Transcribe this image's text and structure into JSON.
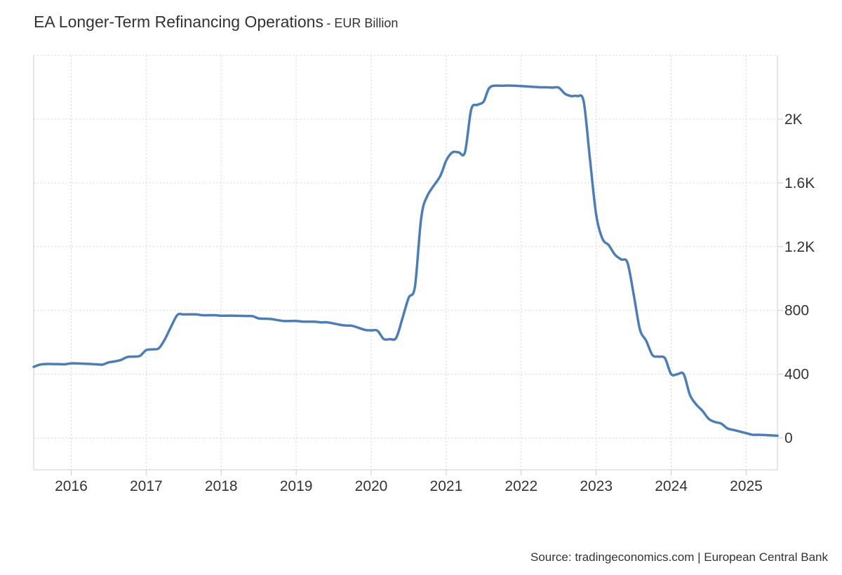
{
  "header": {
    "title": "EA Longer-Term Refinancing Operations",
    "subtitle": "- EUR Billion"
  },
  "footer": {
    "source": "Source: tradingeconomics.com | European Central Bank"
  },
  "colors": {
    "line": "#4a7ebb",
    "grid": "#d6d6d6",
    "axis": "#cccccc",
    "text": "#333333"
  },
  "chart_data": {
    "type": "line",
    "title": "EA Longer-Term Refinancing Operations",
    "subtitle": "EUR Billion",
    "x_ticks": [
      "2016",
      "2017",
      "2018",
      "2019",
      "2020",
      "2021",
      "2022",
      "2023",
      "2024",
      "2025"
    ],
    "y_ticks": [
      {
        "value": 0,
        "label": "0"
      },
      {
        "value": 400,
        "label": "400"
      },
      {
        "value": 800,
        "label": "800"
      },
      {
        "value": 1200,
        "label": "1.2K"
      },
      {
        "value": 1600,
        "label": "1.6K"
      },
      {
        "value": 2000,
        "label": "2K"
      }
    ],
    "xlim": [
      "2015-07",
      "2025-06"
    ],
    "ylim": [
      -200,
      2400
    ],
    "grid": true,
    "y_axis_side": "right",
    "series": [
      {
        "x": [
          "2015-07",
          "2015-08",
          "2015-09",
          "2015-10",
          "2015-11",
          "2015-12",
          "2016-01",
          "2016-03",
          "2016-05",
          "2016-06",
          "2016-07",
          "2016-08",
          "2016-09",
          "2016-10",
          "2016-11",
          "2016-12",
          "2017-01",
          "2017-02",
          "2017-03",
          "2017-04",
          "2017-05",
          "2017-06",
          "2017-07",
          "2017-09",
          "2017-10",
          "2017-12",
          "2018-01",
          "2018-03",
          "2018-05",
          "2018-06",
          "2018-07",
          "2018-08",
          "2018-09",
          "2018-11",
          "2019-01",
          "2019-02",
          "2019-04",
          "2019-05",
          "2019-06",
          "2019-08",
          "2019-09",
          "2019-10",
          "2019-12",
          "2020-01",
          "2020-02",
          "2020-03",
          "2020-04",
          "2020-05",
          "2020-06",
          "2020-07",
          "2020-08",
          "2020-09",
          "2020-10",
          "2020-12",
          "2021-01",
          "2021-02",
          "2021-03",
          "2021-04",
          "2021-05",
          "2021-06",
          "2021-07",
          "2021-08",
          "2021-10",
          "2021-12",
          "2022-02",
          "2022-04",
          "2022-05",
          "2022-06",
          "2022-07",
          "2022-08",
          "2022-09",
          "2022-10",
          "2022-11",
          "2022-12",
          "2023-01",
          "2023-02",
          "2023-03",
          "2023-04",
          "2023-05",
          "2023-06",
          "2023-07",
          "2023-08",
          "2023-09",
          "2023-10",
          "2023-11",
          "2023-12",
          "2024-01",
          "2024-02",
          "2024-03",
          "2024-04",
          "2024-05",
          "2024-06",
          "2024-07",
          "2024-08",
          "2024-09",
          "2024-10",
          "2024-11",
          "2024-12",
          "2025-01",
          "2025-02",
          "2025-03",
          "2025-04",
          "2025-05",
          "2025-06"
        ],
        "y": [
          446,
          460,
          464,
          464,
          463,
          462,
          468,
          466,
          462,
          460,
          474,
          480,
          490,
          508,
          510,
          515,
          551,
          556,
          562,
          620,
          700,
          772,
          775,
          775,
          770,
          770,
          767,
          767,
          765,
          764,
          750,
          748,
          746,
          734,
          734,
          730,
          729,
          725,
          725,
          710,
          705,
          703,
          678,
          675,
          673,
          621,
          620,
          628,
          750,
          880,
          950,
          1380,
          1520,
          1640,
          1740,
          1792,
          1792,
          1792,
          2060,
          2090,
          2110,
          2200,
          2210,
          2210,
          2205,
          2200,
          2200,
          2198,
          2198,
          2160,
          2145,
          2145,
          2110,
          1750,
          1400,
          1250,
          1210,
          1150,
          1120,
          1100,
          900,
          680,
          610,
          520,
          510,
          500,
          400,
          400,
          400,
          270,
          210,
          170,
          120,
          100,
          90,
          60,
          50,
          40,
          30,
          20,
          20,
          18,
          16,
          14
        ]
      }
    ]
  }
}
